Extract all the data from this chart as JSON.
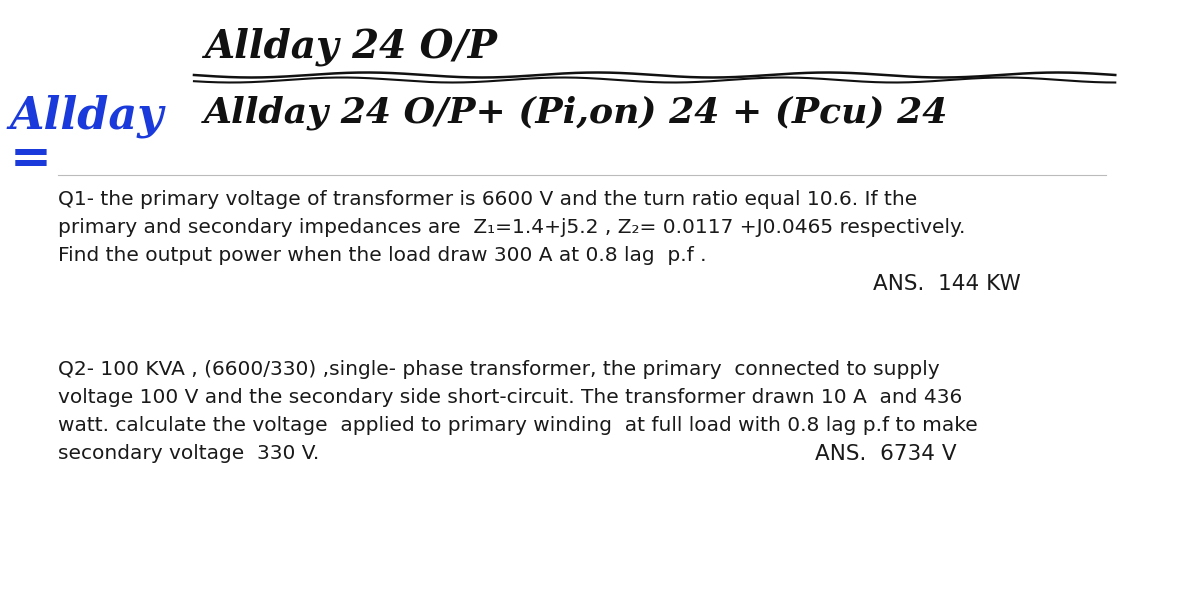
{
  "bg_color": "#ffffff",
  "handwriting_top_line1": "Allday 24 O/P",
  "handwriting_top_line2": "Allday 24 O/P+ (Pi,on) 24 + (Pcu) 24",
  "allday_label": "Allday=",
  "q1_line1": "Q1- the primary voltage of transformer is 6600 V and the turn ratio equal 10.6. If the",
  "q1_line2": "primary and secondary impedances are  Z₁=1.4+j5.2 , Z₂= 0.0117 +J0.0465 respectively.",
  "q1_line3": "Find the output power when the load draw 300 A at 0.8 lag  p.f .",
  "q1_ans": "ANS.  144 KW",
  "q2_line1": "Q2- 100 KVA , (6600/330) ,single- phase transformer, the primary  connected to supply",
  "q2_line2": "voltage 100 V and the secondary side short-circuit. The transformer drawn 10 A  and 436",
  "q2_line3": "watt. calculate the voltage  applied to primary winding  at full load with 0.8 lag p.f to make",
  "q2_line4": "secondary voltage  330 V.",
  "q2_ans": "ANS.  6734 V",
  "font_size_body": 14.5,
  "font_size_handwriting": 28,
  "font_size_allday": 32,
  "text_color": "#1a1a1a",
  "blue_color": "#1a3adb",
  "handwriting_color": "#111111"
}
